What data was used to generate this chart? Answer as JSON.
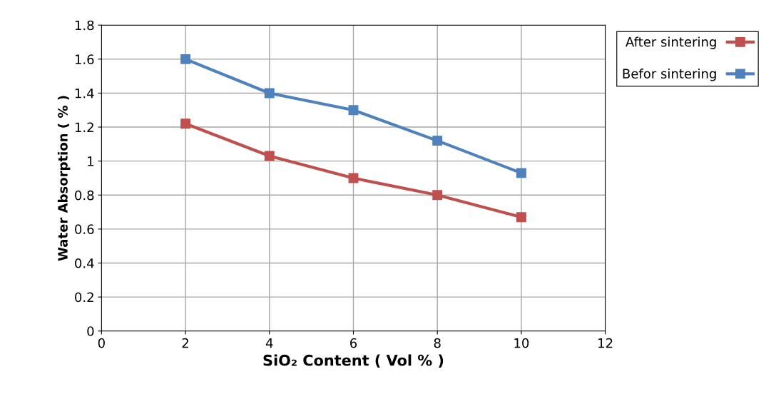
{
  "chart_data": {
    "type": "line",
    "xlabel": "SiO₂ Content ( Vol % )",
    "ylabel": "Water Absorption ( % )",
    "x": [
      2,
      4,
      6,
      8,
      10
    ],
    "series": [
      {
        "name": "After sintering",
        "color": "#c0504d",
        "values": [
          1.22,
          1.03,
          0.9,
          0.8,
          0.67
        ]
      },
      {
        "name": "Befor sintering",
        "color": "#4f81bd",
        "values": [
          1.6,
          1.4,
          1.3,
          1.12,
          0.93
        ]
      }
    ],
    "xlim": [
      0,
      12
    ],
    "xticks": [
      0,
      2,
      4,
      6,
      8,
      10,
      12
    ],
    "ylim": [
      0,
      1.8
    ],
    "yticks": [
      0,
      0.2,
      0.4,
      0.6,
      0.8,
      1,
      1.2,
      1.4,
      1.6,
      1.8
    ],
    "grid": true,
    "legend": "top right",
    "marker": "square",
    "line_style": "solid"
  }
}
